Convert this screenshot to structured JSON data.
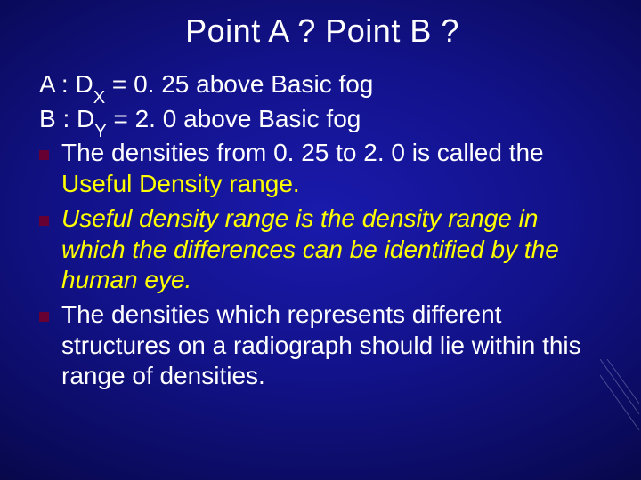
{
  "slide": {
    "background_center": "#1a1aad",
    "background_outer": "#030328",
    "text_color": "#ffffff",
    "highlight_color": "#ffff00",
    "bullet_color": "#660033",
    "title": {
      "text": "Point A ? Point B ?",
      "fontsize": 36,
      "weight": "normal",
      "color": "#ffffff"
    },
    "body_fontsize": 28,
    "line_height": 1.24,
    "bullet_size": 11,
    "pointA": {
      "prefix": "A :  ",
      "d": "D",
      "sub": "X",
      "rest": " = 0. 25 above Basic fog"
    },
    "pointB": {
      "prefix": "B :  ",
      "d": "D",
      "sub": "Y",
      "rest": " = 2. 0 above Basic fog"
    },
    "bullet1": {
      "pre": "The densities from 0. 25 to 2. 0  is called the ",
      "hl": "Useful Density range."
    },
    "bullet2": {
      "hl": "Useful density range is the density range in which the differences can be identified by the  human eye."
    },
    "bullet3": {
      "text": " The densities which represents different structures on a radiograph should lie within this range of densities."
    }
  },
  "corner_lines": {
    "stroke": "#9aa0c8",
    "width": 1
  }
}
